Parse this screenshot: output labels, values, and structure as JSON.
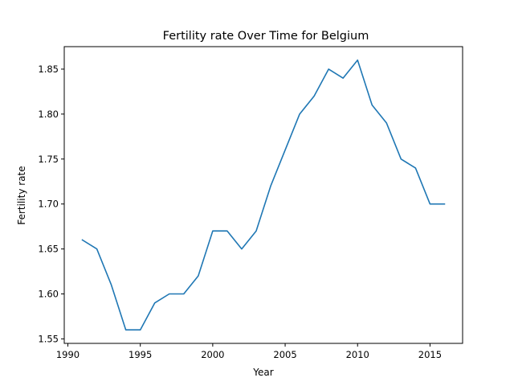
{
  "chart_data": {
    "type": "line",
    "title": "Fertility rate Over Time for Belgium",
    "xlabel": "Year",
    "ylabel": "Fertility rate",
    "xlim": [
      1989.75,
      2017.25
    ],
    "ylim": [
      1.545,
      1.875
    ],
    "xticks": [
      1990,
      1995,
      2000,
      2005,
      2010,
      2015
    ],
    "yticks": [
      1.55,
      1.6,
      1.65,
      1.7,
      1.75,
      1.8,
      1.85
    ],
    "grid": false,
    "line_color": "#1f77b4",
    "series": [
      {
        "x": [
          1991,
          1992,
          1993,
          1994,
          1995,
          1996,
          1997,
          1998,
          1999,
          2000,
          2001,
          2002,
          2003,
          2004,
          2005,
          2006,
          2007,
          2008,
          2009,
          2010,
          2011,
          2012,
          2013,
          2014,
          2015,
          2016
        ],
        "values": [
          1.66,
          1.65,
          1.61,
          1.56,
          1.56,
          1.59,
          1.6,
          1.6,
          1.62,
          1.67,
          1.67,
          1.65,
          1.67,
          1.72,
          1.76,
          1.8,
          1.82,
          1.85,
          1.84,
          1.86,
          1.81,
          1.79,
          1.75,
          1.74,
          1.7,
          1.7
        ]
      }
    ]
  }
}
